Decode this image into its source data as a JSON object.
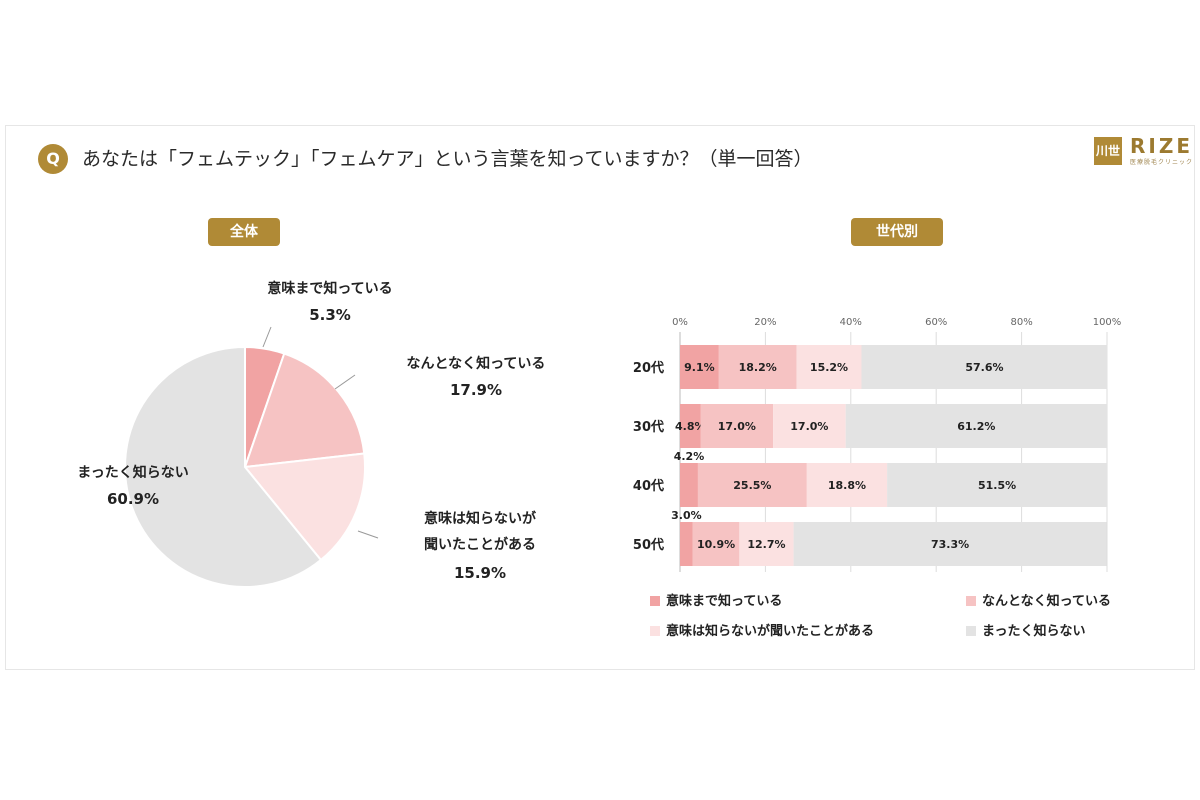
{
  "header": {
    "q_badge": "Q",
    "question": "あなたは「フェムテック」「フェムケア」という言葉を知っていますか？（単一回答）",
    "logo_mark": "川世",
    "logo_text": "RIZE",
    "logo_sub": "医療脱毛クリニック"
  },
  "colors": {
    "gold": "#b08a36",
    "s1": "#f1a3a3",
    "s2": "#f6c3c3",
    "s3": "#fbe1e1",
    "s4": "#e3e3e3"
  },
  "chart_data": [
    {
      "type": "pie",
      "title": "全体",
      "slices": [
        {
          "label": "意味まで知っている",
          "value": 5.3,
          "text": "5.3%"
        },
        {
          "label": "なんとなく知っている",
          "value": 17.9,
          "text": "17.9%"
        },
        {
          "label": "意味は知らないが聞いたことがある",
          "label_lines": [
            "意味は知らないが",
            "聞いたことがある"
          ],
          "value": 15.9,
          "text": "15.9%"
        },
        {
          "label": "まったく知らない",
          "value": 60.9,
          "text": "60.9%"
        }
      ]
    },
    {
      "type": "bar",
      "orientation": "horizontal",
      "stacked": true,
      "title": "世代別",
      "categories": [
        "20代",
        "30代",
        "40代",
        "50代"
      ],
      "xlim": [
        0,
        100
      ],
      "x_ticks": [
        "0%",
        "20%",
        "40%",
        "60%",
        "80%",
        "100%"
      ],
      "series": [
        {
          "name": "意味まで知っている",
          "values": [
            9.1,
            4.8,
            4.2,
            3.0
          ]
        },
        {
          "name": "なんとなく知っている",
          "values": [
            18.2,
            17.0,
            25.5,
            10.9
          ]
        },
        {
          "name": "意味は知らないが聞いたことがある",
          "values": [
            15.2,
            17.0,
            18.8,
            12.7
          ]
        },
        {
          "name": "まったく知らない",
          "values": [
            57.6,
            61.2,
            51.5,
            73.3
          ]
        }
      ],
      "legend_position": "bottom"
    }
  ]
}
